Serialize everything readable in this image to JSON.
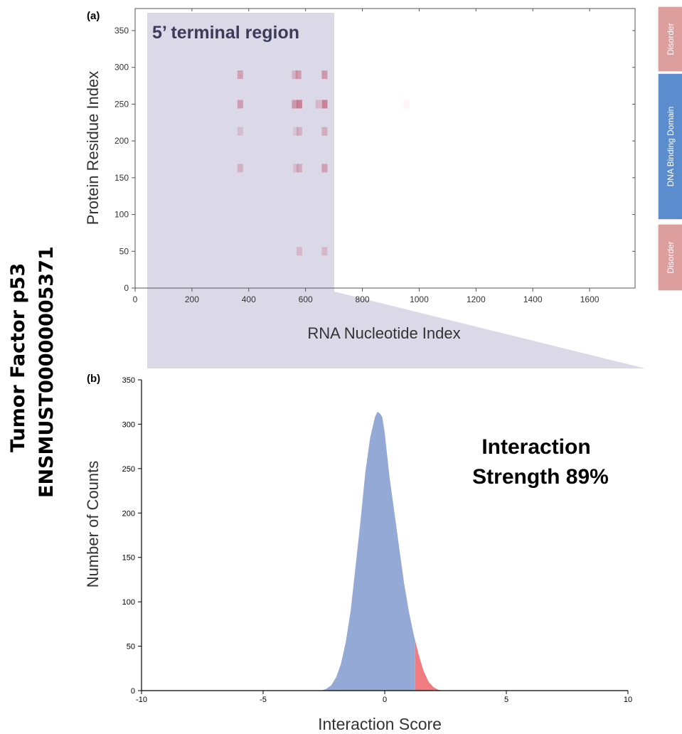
{
  "side_title": {
    "line1": "Tumor Factor p53",
    "line2": "ENSMUST00000005371"
  },
  "domains": [
    {
      "label": "Disorder",
      "color": "#dd9e9e"
    },
    {
      "label": "DNA Binding Domain",
      "color": "#5b8dce"
    },
    {
      "label": "Disorder",
      "color": "#dd9e9e"
    }
  ],
  "chart_data": [
    {
      "panel_label": "(a)",
      "type": "heatmap",
      "xlabel": "RNA Nucleotide Index",
      "ylabel": "Protein Residue Index",
      "xlim": [
        0,
        1760
      ],
      "ylim": [
        0,
        380
      ],
      "xticks": [
        0,
        200,
        400,
        600,
        800,
        1000,
        1200,
        1400,
        1600
      ],
      "yticks": [
        0,
        50,
        100,
        150,
        200,
        250,
        300,
        350
      ],
      "highlight": {
        "label": "5’ terminal region",
        "x_range": [
          45,
          700
        ]
      },
      "cells": [
        {
          "x": 370,
          "y": 290,
          "v": 0.5
        },
        {
          "x": 370,
          "y": 250,
          "v": 0.55
        },
        {
          "x": 370,
          "y": 213,
          "v": 0.25
        },
        {
          "x": 370,
          "y": 163,
          "v": 0.35
        },
        {
          "x": 562,
          "y": 290,
          "v": 0.35
        },
        {
          "x": 575,
          "y": 290,
          "v": 0.55
        },
        {
          "x": 562,
          "y": 250,
          "v": 0.6
        },
        {
          "x": 578,
          "y": 250,
          "v": 0.8
        },
        {
          "x": 566,
          "y": 213,
          "v": 0.2
        },
        {
          "x": 578,
          "y": 213,
          "v": 0.35
        },
        {
          "x": 566,
          "y": 163,
          "v": 0.25
        },
        {
          "x": 578,
          "y": 163,
          "v": 0.4
        },
        {
          "x": 578,
          "y": 50,
          "v": 0.3
        },
        {
          "x": 645,
          "y": 250,
          "v": 0.3
        },
        {
          "x": 667,
          "y": 290,
          "v": 0.6
        },
        {
          "x": 667,
          "y": 250,
          "v": 0.8
        },
        {
          "x": 667,
          "y": 213,
          "v": 0.4
        },
        {
          "x": 667,
          "y": 163,
          "v": 0.5
        },
        {
          "x": 667,
          "y": 50,
          "v": 0.3
        },
        {
          "x": 955,
          "y": 250,
          "v": 0.05
        }
      ],
      "colors": {
        "cell": "#d94455"
      }
    },
    {
      "panel_label": "(b)",
      "type": "area",
      "xlabel": "Interaction Score",
      "ylabel": "Number of Counts",
      "xlim": [
        -10,
        10
      ],
      "ylim": [
        0,
        350
      ],
      "xticks": [
        -10,
        -5,
        0,
        5,
        10
      ],
      "yticks": [
        0,
        50,
        100,
        150,
        200,
        250,
        300,
        350
      ],
      "annotation": {
        "line1": "Interaction",
        "line2": "Strength 89%"
      },
      "x": [
        -2.6,
        -2.4,
        -2.2,
        -2.0,
        -1.8,
        -1.6,
        -1.4,
        -1.2,
        -1.0,
        -0.8,
        -0.6,
        -0.4,
        -0.3,
        -0.2,
        -0.1,
        0.0,
        0.2,
        0.4,
        0.6,
        0.8,
        1.0,
        1.2,
        1.4,
        1.6,
        1.8,
        2.0,
        2.2,
        2.4
      ],
      "y": [
        0,
        2,
        6,
        15,
        30,
        55,
        90,
        140,
        190,
        245,
        285,
        308,
        314,
        312,
        308,
        290,
        240,
        200,
        160,
        120,
        88,
        62,
        40,
        22,
        10,
        4,
        1,
        0
      ],
      "threshold": 1.25,
      "colors": {
        "below": "#95a9d6",
        "above": "#f07b80"
      }
    }
  ]
}
